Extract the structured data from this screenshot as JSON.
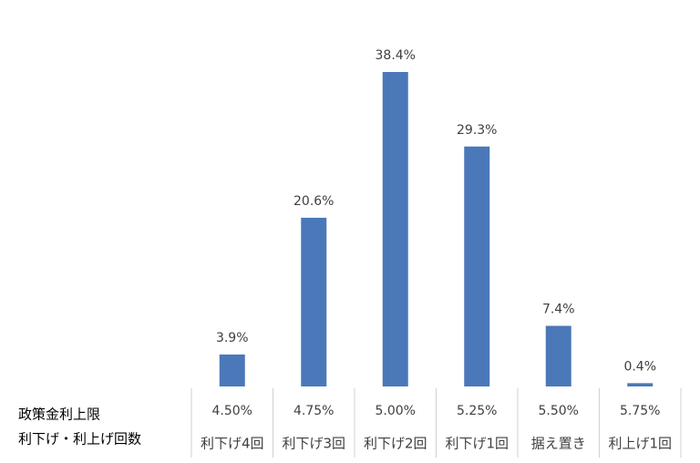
{
  "chart_data": {
    "type": "bar",
    "row_labels": [
      "政策金利上限",
      "利下げ・利上げ回数"
    ],
    "categories": [
      "4.50%",
      "4.75%",
      "5.00%",
      "5.25%",
      "5.50%",
      "5.75%"
    ],
    "category_sublabels": [
      "利下げ4回",
      "利下げ3回",
      "利下げ2回",
      "利下げ1回",
      "据え置き",
      "利上げ1回"
    ],
    "values": [
      3.9,
      20.6,
      38.4,
      29.3,
      7.4,
      0.4
    ],
    "value_labels": [
      "3.9%",
      "20.6%",
      "38.4%",
      "29.3%",
      "7.4%",
      "0.4%"
    ],
    "color": "#4a78b8"
  }
}
